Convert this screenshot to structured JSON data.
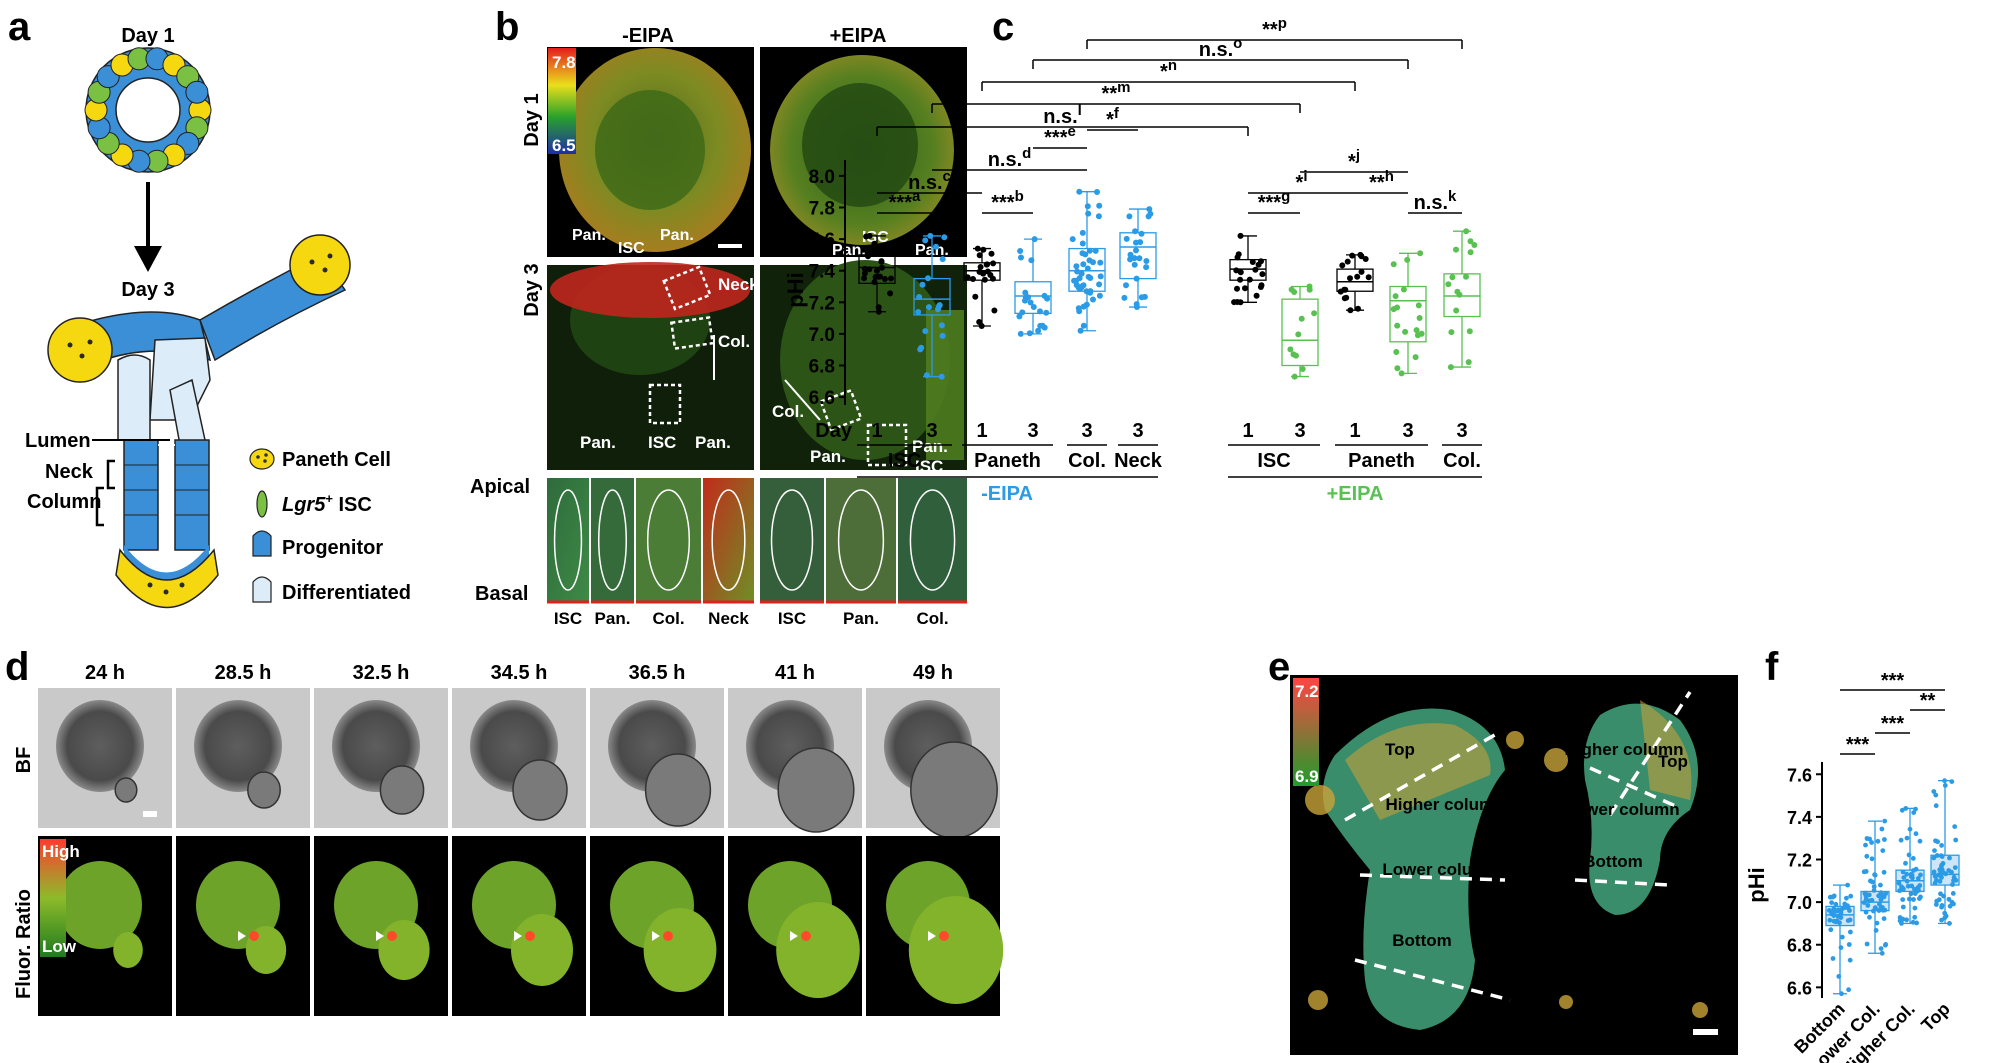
{
  "panels": {
    "a": "a",
    "b": "b",
    "c": "c",
    "d": "d",
    "e": "e",
    "f": "f"
  },
  "a": {
    "day1": "Day 1",
    "day3": "Day 3",
    "lumen": "Lumen",
    "neck": "Neck",
    "column": "Column",
    "legend": [
      {
        "label": "Paneth Cell",
        "color": "#f5d80f"
      },
      {
        "label_italic": "Lgr5",
        "label_sup": "+",
        "label_rest": " ISC",
        "color": "#7ac143"
      },
      {
        "label": "Progenitor",
        "color": "#3a8fd6"
      },
      {
        "label": "Differentiated",
        "color": "#dcecf8"
      }
    ]
  },
  "b": {
    "col_minus": "-EIPA",
    "col_plus": "+EIPA",
    "row_day1": "Day 1",
    "row_day3": "Day 3",
    "scale_max": "7.8",
    "scale_min": "6.5",
    "day1_minus_labels": [
      "Pan.",
      "ISC",
      "Pan."
    ],
    "day1_plus_labels": [
      "ISC",
      "Pan.",
      "Pan."
    ],
    "day3_minus_labels": [
      "Neck",
      "Col.",
      "Pan.",
      "ISC",
      "Pan."
    ],
    "day3_plus_labels": [
      "Col.",
      "Pan.",
      "Pan.",
      "ISC"
    ],
    "apical": "Apical",
    "basal": "Basal",
    "crop_labels": [
      "ISC",
      "Pan.",
      "Col.",
      "Neck",
      "ISC",
      "Pan.",
      "Col."
    ]
  },
  "c": {
    "ylabel": "pHi",
    "yticks": [
      "6.6",
      "6.8",
      "7.0",
      "7.2",
      "7.4",
      "7.6",
      "7.8",
      "8.0"
    ],
    "day_label": "Day",
    "group_minus": "-EIPA",
    "group_plus": "+EIPA",
    "minus_color": "#2b9be6",
    "plus_color": "#59c152",
    "categories": [
      {
        "day": "1",
        "type": "ISC",
        "treat": "-EIPA",
        "color": "#000000"
      },
      {
        "day": "3",
        "type": "ISC",
        "treat": "-EIPA",
        "color": "#2b9be6"
      },
      {
        "day": "1",
        "type": "Paneth",
        "treat": "-EIPA",
        "color": "#000000"
      },
      {
        "day": "3",
        "type": "Paneth",
        "treat": "-EIPA",
        "color": "#2b9be6"
      },
      {
        "day": "3",
        "type": "Col.",
        "treat": "-EIPA",
        "color": "#2b9be6"
      },
      {
        "day": "3",
        "type": "Neck",
        "treat": "-EIPA",
        "color": "#2b9be6"
      },
      {
        "day": "1",
        "type": "ISC",
        "treat": "+EIPA",
        "color": "#000000"
      },
      {
        "day": "3",
        "type": "ISC",
        "treat": "+EIPA",
        "color": "#59c152"
      },
      {
        "day": "1",
        "type": "Paneth",
        "treat": "+EIPA",
        "color": "#000000"
      },
      {
        "day": "3",
        "type": "Paneth",
        "treat": "+EIPA",
        "color": "#59c152"
      },
      {
        "day": "3",
        "type": "Col.",
        "treat": "+EIPA",
        "color": "#59c152"
      }
    ],
    "type_labels": [
      "ISC",
      "Paneth",
      "Col.",
      "Neck",
      "ISC",
      "Paneth",
      "Col."
    ],
    "sig": [
      {
        "t": "***",
        "s": "a"
      },
      {
        "t": "***",
        "s": "b"
      },
      {
        "t": "n.s.",
        "s": "c"
      },
      {
        "t": "n.s.",
        "s": "d"
      },
      {
        "t": "***",
        "s": "e"
      },
      {
        "t": "*",
        "s": "f"
      },
      {
        "t": "***",
        "s": "g"
      },
      {
        "t": "**",
        "s": "h"
      },
      {
        "t": "*",
        "s": "i"
      },
      {
        "t": "*",
        "s": "j"
      },
      {
        "t": "n.s.",
        "s": "k"
      },
      {
        "t": "n.s.",
        "s": "l"
      },
      {
        "t": "**",
        "s": "m"
      },
      {
        "t": "*",
        "s": "n"
      },
      {
        "t": "n.s.",
        "s": "o"
      },
      {
        "t": "**",
        "s": "p"
      }
    ]
  },
  "d": {
    "times": [
      "24 h",
      "28.5 h",
      "32.5 h",
      "34.5 h",
      "36.5 h",
      "41 h",
      "49 h"
    ],
    "row_bf": "BF",
    "row_fluor": "Fluor. Ratio",
    "high": "High",
    "low": "Low"
  },
  "e": {
    "scale_max": "7.2",
    "scale_min": "6.9",
    "labels": [
      "Top",
      "Higher column",
      "Lower column",
      "Bottom",
      "Higher column",
      "Top",
      "Lower column",
      "Bottom"
    ]
  },
  "f": {
    "ylabel": "pHi",
    "yticks": [
      "6.6",
      "6.8",
      "7.0",
      "7.2",
      "7.4",
      "7.6"
    ],
    "categories": [
      "Bottom",
      "Lower Col.",
      "Higher Col.",
      "Top"
    ],
    "sig": [
      "***",
      "**",
      "***",
      "***"
    ]
  },
  "chart_data": [
    {
      "type": "box",
      "ylabel": "pHi",
      "ylim": [
        6.55,
        8.05
      ],
      "categories": [
        "Day 1 ISC -EIPA",
        "Day 3 ISC -EIPA",
        "Day 1 Paneth -EIPA",
        "Day 3 Paneth -EIPA",
        "Day 3 Col. -EIPA",
        "Day 3 Neck -EIPA",
        "Day 1 ISC +EIPA",
        "Day 3 ISC +EIPA",
        "Day 1 Paneth +EIPA",
        "Day 3 Paneth +EIPA",
        "Day 3 Col. +EIPA"
      ],
      "series": [
        {
          "values": [
            {
              "min": 7.14,
              "q1": 7.32,
              "median": 7.42,
              "q3": 7.5,
              "max": 7.62
            },
            {
              "min": 6.73,
              "q1": 7.12,
              "median": 7.22,
              "q3": 7.35,
              "max": 7.62
            },
            {
              "min": 7.05,
              "q1": 7.34,
              "median": 7.4,
              "q3": 7.45,
              "max": 7.54
            },
            {
              "min": 7.0,
              "q1": 7.13,
              "median": 7.24,
              "q3": 7.33,
              "max": 7.6
            },
            {
              "min": 7.02,
              "q1": 7.27,
              "median": 7.4,
              "q3": 7.54,
              "max": 7.9
            },
            {
              "min": 7.17,
              "q1": 7.35,
              "median": 7.55,
              "q3": 7.64,
              "max": 7.79
            },
            {
              "min": 7.2,
              "q1": 7.34,
              "median": 7.41,
              "q3": 7.47,
              "max": 7.62
            },
            {
              "min": 6.73,
              "q1": 6.8,
              "median": 6.96,
              "q3": 7.22,
              "max": 7.3
            },
            {
              "min": 7.15,
              "q1": 7.27,
              "median": 7.33,
              "q3": 7.41,
              "max": 7.5
            },
            {
              "min": 6.75,
              "q1": 6.95,
              "median": 7.21,
              "q3": 7.3,
              "max": 7.51
            },
            {
              "min": 6.79,
              "q1": 7.11,
              "median": 7.24,
              "q3": 7.38,
              "max": 7.65
            }
          ]
        }
      ]
    },
    {
      "type": "box",
      "ylabel": "pHi",
      "ylim": [
        6.55,
        7.62
      ],
      "categories": [
        "Bottom",
        "Lower Col.",
        "Higher Col.",
        "Top"
      ],
      "series": [
        {
          "values": [
            {
              "min": 6.57,
              "q1": 6.89,
              "median": 6.94,
              "q3": 6.98,
              "max": 7.08
            },
            {
              "min": 6.76,
              "q1": 6.96,
              "median": 7.0,
              "q3": 7.05,
              "max": 7.38
            },
            {
              "min": 6.9,
              "q1": 7.05,
              "median": 7.1,
              "q3": 7.15,
              "max": 7.44
            },
            {
              "min": 6.9,
              "q1": 7.08,
              "median": 7.13,
              "q3": 7.22,
              "max": 7.57
            }
          ]
        }
      ]
    }
  ]
}
